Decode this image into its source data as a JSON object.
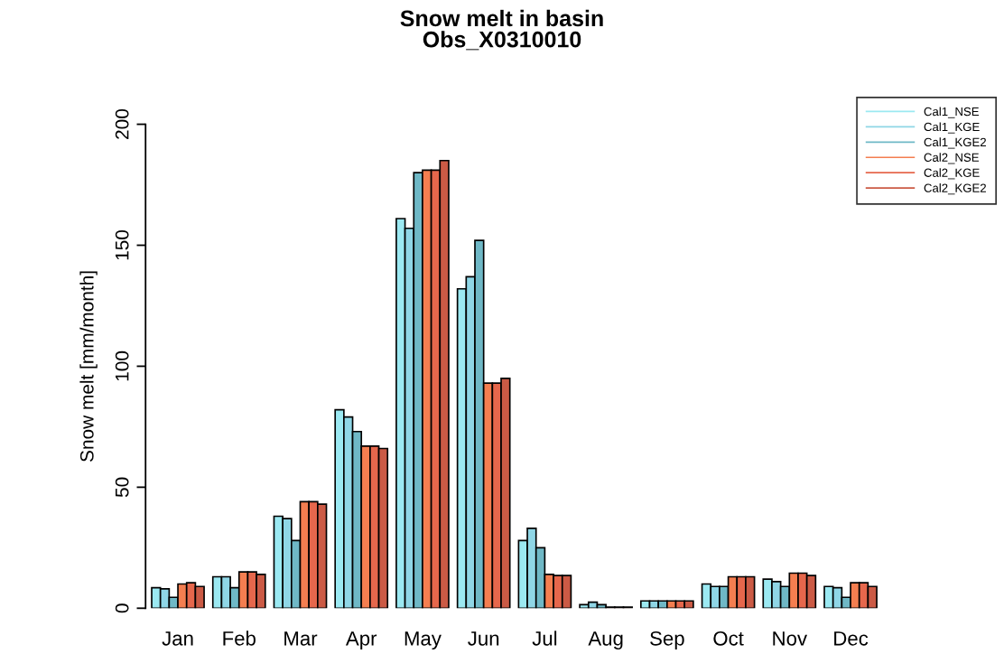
{
  "chart_data": {
    "type": "bar",
    "title": "Snow melt in basin\nObs_X0310010",
    "ylabel": "Snow melt [mm/month]",
    "categories": [
      "Jan",
      "Feb",
      "Mar",
      "Apr",
      "May",
      "Jun",
      "Jul",
      "Aug",
      "Sep",
      "Oct",
      "Nov",
      "Dec"
    ],
    "series": [
      {
        "name": "Cal1_NSE",
        "color": "#9be9f2",
        "values": [
          8.5,
          13,
          38,
          82,
          161,
          132,
          28,
          1.5,
          3,
          10,
          12,
          9
        ]
      },
      {
        "name": "Cal1_KGE",
        "color": "#8fd6e6",
        "values": [
          8,
          13,
          37,
          79,
          157,
          137,
          33,
          2.5,
          3,
          9,
          11,
          8.5
        ]
      },
      {
        "name": "Cal1_KGE2",
        "color": "#6fb8c6",
        "values": [
          4.5,
          8.5,
          28,
          73,
          180,
          152,
          25,
          1.5,
          3,
          9,
          9,
          4.5
        ]
      },
      {
        "name": "Cal2_NSE",
        "color": "#f47e50",
        "values": [
          10,
          15,
          44,
          67,
          181,
          93,
          14,
          0.5,
          3,
          13,
          14.5,
          10.5
        ]
      },
      {
        "name": "Cal2_KGE",
        "color": "#e6674c",
        "values": [
          10.5,
          15,
          44,
          67,
          181,
          93,
          13.5,
          0.5,
          3,
          13,
          14.5,
          10.5
        ]
      },
      {
        "name": "Cal2_KGE2",
        "color": "#cb5a45",
        "values": [
          9,
          14,
          43,
          66,
          185,
          95,
          13.5,
          0.5,
          3,
          13,
          13.5,
          9
        ]
      }
    ],
    "ylim": [
      0,
      200
    ],
    "yticks": [
      0,
      50,
      100,
      150,
      200
    ],
    "grid": false,
    "legend": "top right"
  }
}
